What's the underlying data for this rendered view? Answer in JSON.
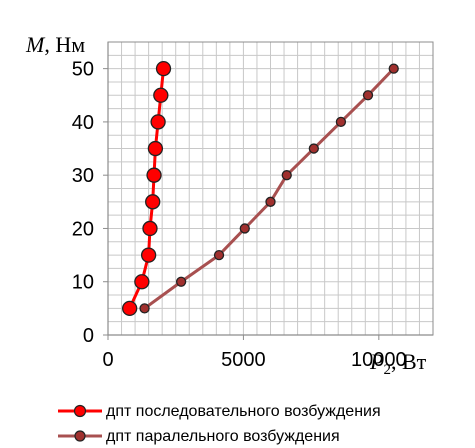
{
  "chart_data": {
    "type": "line",
    "xlabel": "P2, Вт",
    "xlabel_main": "P",
    "xlabel_sub": "2",
    "xlabel_unit": ", Вт",
    "ylabel": "M, Нм",
    "ylabel_main": "M",
    "ylabel_unit": ", Нм",
    "xlim": [
      0,
      12000
    ],
    "ylim": [
      0,
      55
    ],
    "x_ticks": [
      0,
      5000,
      10000
    ],
    "x_tick_labels": [
      "0",
      "5000",
      "10000"
    ],
    "y_ticks": [
      0,
      10,
      20,
      30,
      40,
      50
    ],
    "y_tick_labels": [
      "0",
      "10",
      "20",
      "30",
      "40",
      "50"
    ],
    "grid": true,
    "legend_position": "bottom",
    "series": [
      {
        "name": "дпт последовательного возбуждения",
        "color": "#ff0000",
        "line_color": "#ff0000",
        "marker": "large-circle",
        "points": [
          {
            "x": 800,
            "y": 5
          },
          {
            "x": 1250,
            "y": 10
          },
          {
            "x": 1500,
            "y": 15
          },
          {
            "x": 1550,
            "y": 20
          },
          {
            "x": 1650,
            "y": 25
          },
          {
            "x": 1700,
            "y": 30
          },
          {
            "x": 1750,
            "y": 35
          },
          {
            "x": 1850,
            "y": 40
          },
          {
            "x": 1950,
            "y": 45
          },
          {
            "x": 2050,
            "y": 50
          }
        ]
      },
      {
        "name": "дпт паралельного возбуждения",
        "color": "#a0302e",
        "line_color": "#a85050",
        "marker": "small-circle",
        "points": [
          {
            "x": 1350,
            "y": 5
          },
          {
            "x": 2700,
            "y": 10
          },
          {
            "x": 4100,
            "y": 15
          },
          {
            "x": 5050,
            "y": 20
          },
          {
            "x": 6000,
            "y": 25
          },
          {
            "x": 6600,
            "y": 30
          },
          {
            "x": 7600,
            "y": 35
          },
          {
            "x": 8600,
            "y": 40
          },
          {
            "x": 9600,
            "y": 45
          },
          {
            "x": 10550,
            "y": 50
          }
        ]
      }
    ]
  }
}
